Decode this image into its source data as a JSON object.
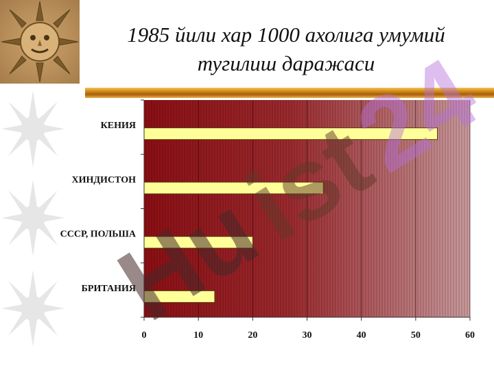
{
  "title": {
    "line1": "1985 йили  хар 1000 ахолига умумий",
    "line2": "тугилиш даражаси"
  },
  "icons": {
    "photo": "sun-face-icon",
    "side": "sun-icon"
  },
  "colors": {
    "plot_dark": "#8c0f14",
    "plot_light": "#c99a9c",
    "bar_fill": "#ffff99",
    "rule_gold": "#d08a17"
  },
  "chart_data": {
    "type": "bar",
    "orientation": "horizontal",
    "categories": [
      "КЕНИЯ",
      "ХИНДИСТОН",
      "СССР, ПОЛЬША",
      "БРИТАНИЯ"
    ],
    "values": [
      54,
      33,
      20,
      13
    ],
    "xlim": [
      0,
      60
    ],
    "xticks": [
      "0",
      "10",
      "20",
      "30",
      "40",
      "50",
      "60"
    ],
    "grid": true
  }
}
